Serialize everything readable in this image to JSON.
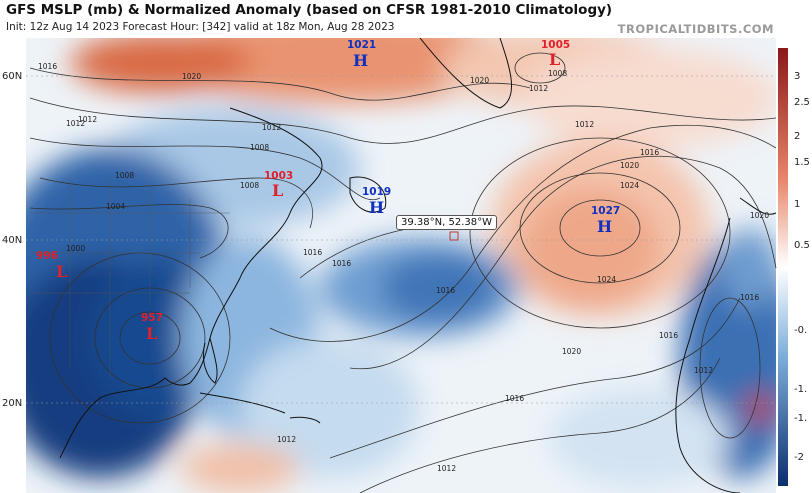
{
  "header": {
    "title": "GFS MSLP (mb) & Normalized Anomaly (based on CFSR 1981-2010 Climatology)",
    "subtitle": "Init: 12z Aug 14 2023   Forecast Hour: [342]   valid at 18z Mon, Aug 28 2023",
    "brand": "TROPICALTIDBITS.COM"
  },
  "map": {
    "latitude_labels": [
      "60N",
      "40N",
      "20N"
    ],
    "pressure_centers": [
      {
        "id": "h1021",
        "type": "H",
        "value": "1021"
      },
      {
        "id": "l1005",
        "type": "L",
        "value": "1005"
      },
      {
        "id": "l1003",
        "type": "L",
        "value": "1003"
      },
      {
        "id": "h1019",
        "type": "H",
        "value": "1019"
      },
      {
        "id": "h1027",
        "type": "H",
        "value": "1027"
      },
      {
        "id": "l996",
        "type": "L",
        "value": "996"
      },
      {
        "id": "l957",
        "type": "L",
        "value": "957"
      }
    ],
    "isobar_labels": [
      "1016",
      "1020",
      "1012",
      "1008",
      "1012",
      "1008",
      "1004",
      "1000",
      "1008",
      "1012",
      "1016",
      "1016",
      "1020",
      "1016",
      "1012",
      "1016",
      "1020",
      "1024",
      "1024",
      "1020",
      "1016",
      "1016",
      "1020",
      "1016",
      "1012",
      "1012",
      "1012",
      "1012",
      "1008"
    ],
    "cursor_readout": "39.38°N, 52.38°W"
  },
  "colorbar": {
    "ticks": [
      "3",
      "2.5",
      "2",
      "1.5",
      "1",
      "0.5",
      "-0.",
      "-1.",
      "-1.",
      "-2"
    ],
    "colors": {
      "strong_positive": "#8a1818",
      "positive": "#e8866a",
      "neutral": "#ffffff",
      "negative": "#7fb0dc",
      "strong_negative": "#0c2f6e"
    }
  }
}
